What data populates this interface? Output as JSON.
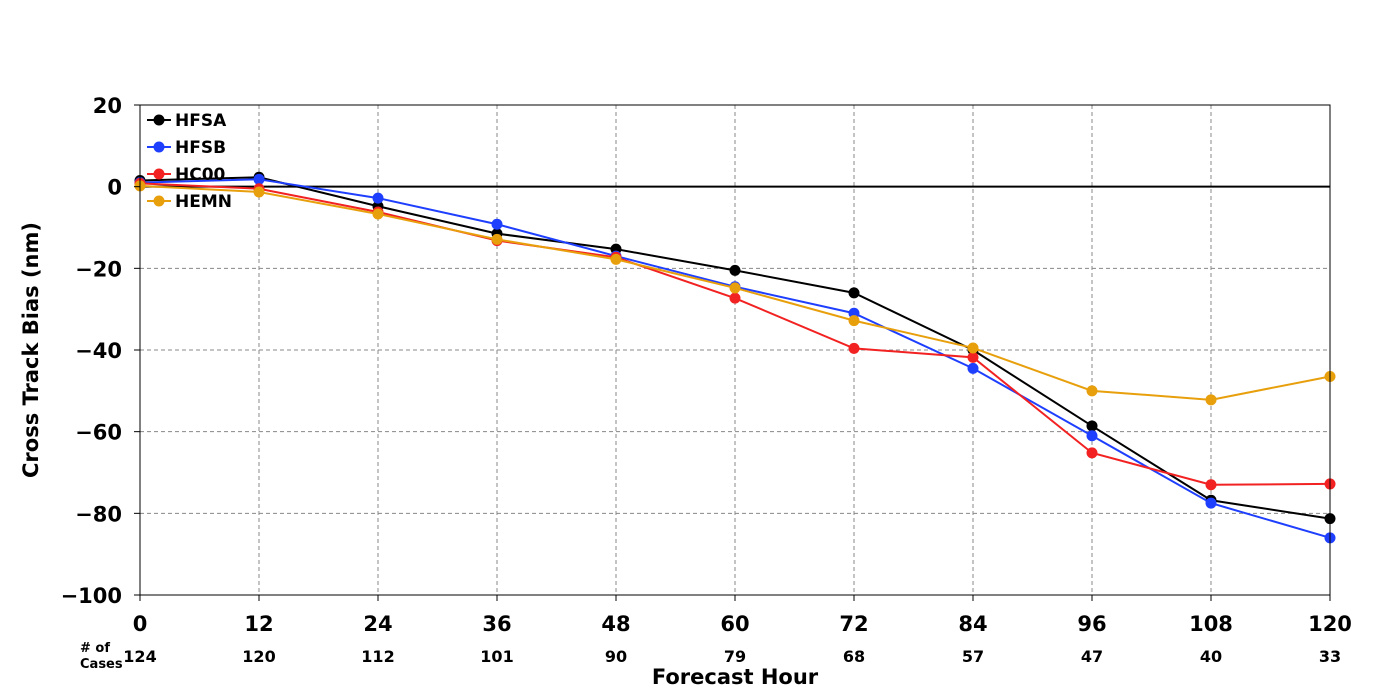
{
  "chart_data": {
    "type": "line",
    "xlabel": "Forecast Hour",
    "ylabel": "Cross Track Bias (nm)",
    "x": [
      0,
      12,
      24,
      36,
      48,
      60,
      72,
      84,
      96,
      108,
      120
    ],
    "xlim": [
      0,
      120
    ],
    "ylim": [
      -100,
      20
    ],
    "yticks": [
      20,
      0,
      -20,
      -40,
      -60,
      -80,
      -100
    ],
    "ytick_labels": [
      "20",
      "0",
      "−20",
      "−40",
      "−60",
      "−80",
      "−100"
    ],
    "grid": true,
    "zero_line": true,
    "legend_position": "top-left",
    "cases_title": [
      "# of",
      "Cases"
    ],
    "cases": [
      "124",
      "120",
      "112",
      "101",
      "90",
      "79",
      "68",
      "57",
      "47",
      "40",
      "33"
    ],
    "series": [
      {
        "name": "HFSA",
        "color": "#000000",
        "values": [
          1.5,
          2.3,
          -4.8,
          -11.5,
          -15.3,
          -20.5,
          -26.0,
          -40.0,
          -58.6,
          -76.8,
          -81.3
        ]
      },
      {
        "name": "HFSB",
        "color": "#1f3fff",
        "values": [
          1.0,
          1.8,
          -2.8,
          -9.2,
          -17.0,
          -24.5,
          -31.0,
          -44.5,
          -61.0,
          -77.5,
          -86.0
        ]
      },
      {
        "name": "HC00",
        "color": "#f22222",
        "values": [
          0.8,
          -0.5,
          -6.2,
          -13.2,
          -17.3,
          -27.3,
          -39.6,
          -41.8,
          -65.2,
          -73.0,
          -72.8
        ]
      },
      {
        "name": "HEMN",
        "color": "#e89f0c",
        "values": [
          0.2,
          -1.3,
          -6.7,
          -12.9,
          -17.8,
          -24.8,
          -32.8,
          -39.5,
          -50.0,
          -52.2,
          -46.5
        ]
      }
    ]
  }
}
